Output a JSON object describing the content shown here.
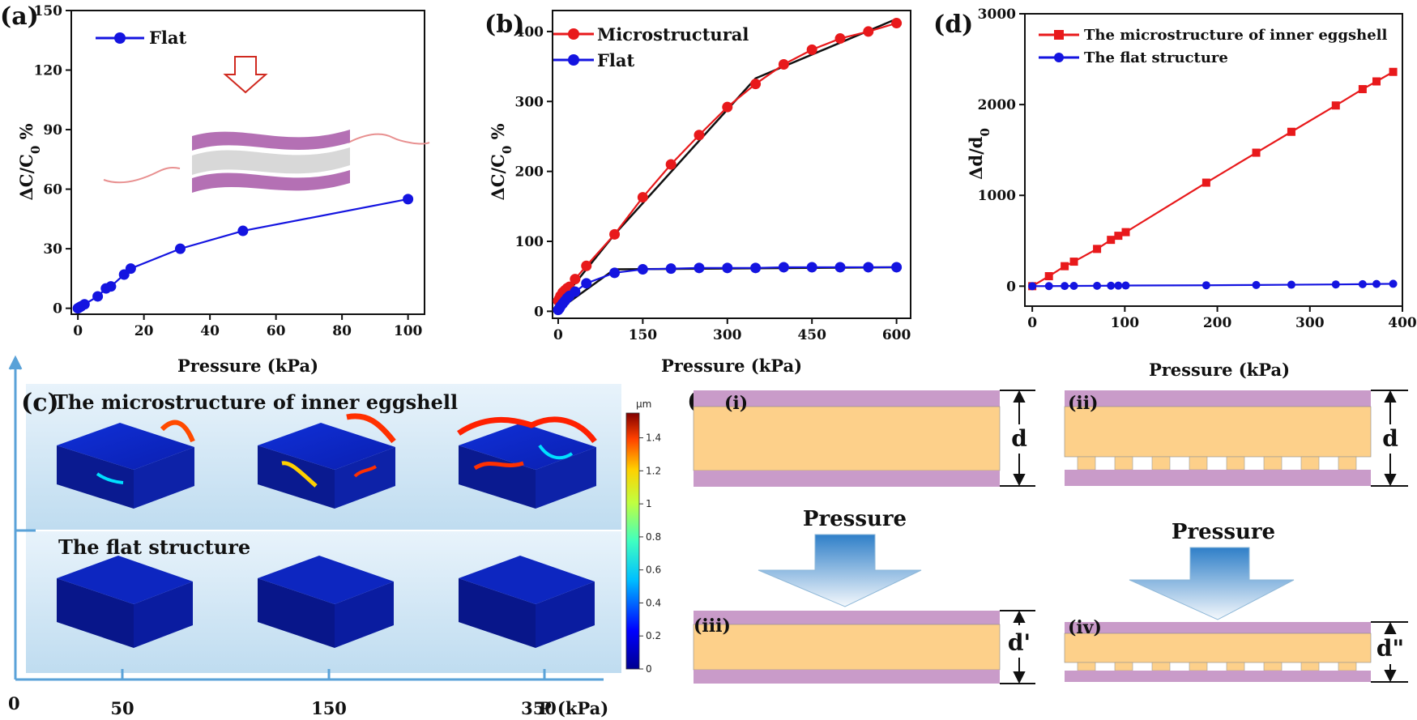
{
  "colors": {
    "red": "#e8191b",
    "blue": "#1414e0",
    "black": "#111111",
    "purple": "#c99bc9",
    "orange": "#fdd08a",
    "arrow_blue": "#2f7fc8"
  },
  "chart_data": [
    {
      "id": "a",
      "type": "line",
      "panel_label": "(a)",
      "xlabel": "Pressure (kPa)",
      "ylabel": "ΔC/C0 %",
      "xlim": [
        -2,
        105
      ],
      "ylim": [
        -3,
        150
      ],
      "xticks": [
        0,
        20,
        40,
        60,
        80,
        100
      ],
      "yticks": [
        0,
        30,
        60,
        90,
        120,
        150
      ],
      "legend": "top-left",
      "series": [
        {
          "name": "Flat",
          "color": "#1414e0",
          "marker": "circle",
          "x": [
            0,
            0.5,
            1,
            2,
            6,
            8.5,
            10,
            14,
            16,
            31,
            50,
            100
          ],
          "y": [
            0,
            0.5,
            1,
            2,
            6,
            10,
            11,
            17,
            20,
            30,
            39,
            55
          ]
        }
      ]
    },
    {
      "id": "b",
      "type": "line",
      "panel_label": "(b)",
      "xlabel": "Pressure (kPa)",
      "ylabel": "ΔC/C0 %",
      "xlim": [
        -10,
        625
      ],
      "ylim": [
        -10,
        430
      ],
      "xticks": [
        0,
        150,
        300,
        450,
        600
      ],
      "yticks": [
        0,
        100,
        200,
        300,
        400
      ],
      "legend": "top-left",
      "series": [
        {
          "name": "Microstructural",
          "color": "#e8191b",
          "marker": "circle",
          "x": [
            0,
            2,
            4,
            8,
            12,
            16,
            20,
            30,
            50,
            100,
            150,
            200,
            250,
            300,
            350,
            400,
            450,
            500,
            550,
            600
          ],
          "y": [
            15,
            18,
            22,
            27,
            30,
            33,
            35,
            46,
            65,
            110,
            163,
            210,
            252,
            292,
            325,
            353,
            374,
            390,
            400,
            412
          ]
        },
        {
          "name": "Flat",
          "color": "#1414e0",
          "marker": "circle",
          "x": [
            0,
            2,
            4,
            8,
            12,
            16,
            20,
            30,
            50,
            100,
            150,
            200,
            250,
            300,
            350,
            400,
            450,
            500,
            550,
            600
          ],
          "y": [
            2,
            4,
            7,
            11,
            15,
            19,
            22,
            28,
            40,
            55,
            60,
            61,
            62,
            62,
            62,
            63,
            63,
            63,
            63,
            63
          ]
        }
      ],
      "fit_lines": [
        {
          "x": [
            0,
            100,
            350,
            600
          ],
          "y": [
            10,
            110,
            333,
            418
          ]
        },
        {
          "x": [
            0,
            100,
            600
          ],
          "y": [
            2,
            60,
            63
          ]
        }
      ]
    },
    {
      "id": "d",
      "type": "line",
      "panel_label": "(d)",
      "xlabel": "Pressure (kPa)",
      "ylabel": "Δd/d0",
      "xlim": [
        -8,
        400
      ],
      "ylim": [
        -220,
        3000
      ],
      "xticks": [
        0,
        100,
        200,
        300,
        400
      ],
      "yticks": [
        0,
        1000,
        2000,
        3000
      ],
      "legend": "top-left",
      "series": [
        {
          "name": "The microstructure of inner eggshell",
          "color": "#e8191b",
          "marker": "square",
          "x": [
            0,
            18,
            35,
            45,
            70,
            85,
            93,
            101,
            188,
            242,
            280,
            328,
            357,
            372,
            390
          ],
          "y": [
            0,
            110,
            220,
            270,
            410,
            510,
            555,
            595,
            1140,
            1470,
            1700,
            1990,
            2170,
            2255,
            2360
          ]
        },
        {
          "name": "The flat structure",
          "color": "#1414e0",
          "marker": "circle",
          "x": [
            0,
            18,
            35,
            45,
            70,
            85,
            93,
            101,
            188,
            242,
            280,
            328,
            357,
            372,
            390
          ],
          "y": [
            0,
            1,
            2,
            3,
            4,
            5,
            6,
            7,
            10,
            13,
            16,
            19,
            22,
            24,
            26
          ]
        }
      ]
    }
  ],
  "panel_c": {
    "label": "(c)",
    "title_micro": "The microstructure of inner eggshell",
    "title_flat": "The flat structure",
    "colorbar_unit": "μm",
    "colorbar_ticks": [
      "1.4",
      "1.2",
      "1",
      "0.8",
      "0.6",
      "0.4",
      "0.2",
      "0"
    ],
    "p_axis": {
      "origin": "0",
      "ticks": [
        "50",
        "150",
        "350"
      ],
      "label": "P (kPa)"
    }
  },
  "panel_e": {
    "label": "(e)",
    "roman": [
      "(i)",
      "(ii)",
      "(iii)",
      "(iv)"
    ],
    "dims": [
      "d",
      "d",
      "d'",
      "d\""
    ],
    "pressure": "Pressure"
  }
}
